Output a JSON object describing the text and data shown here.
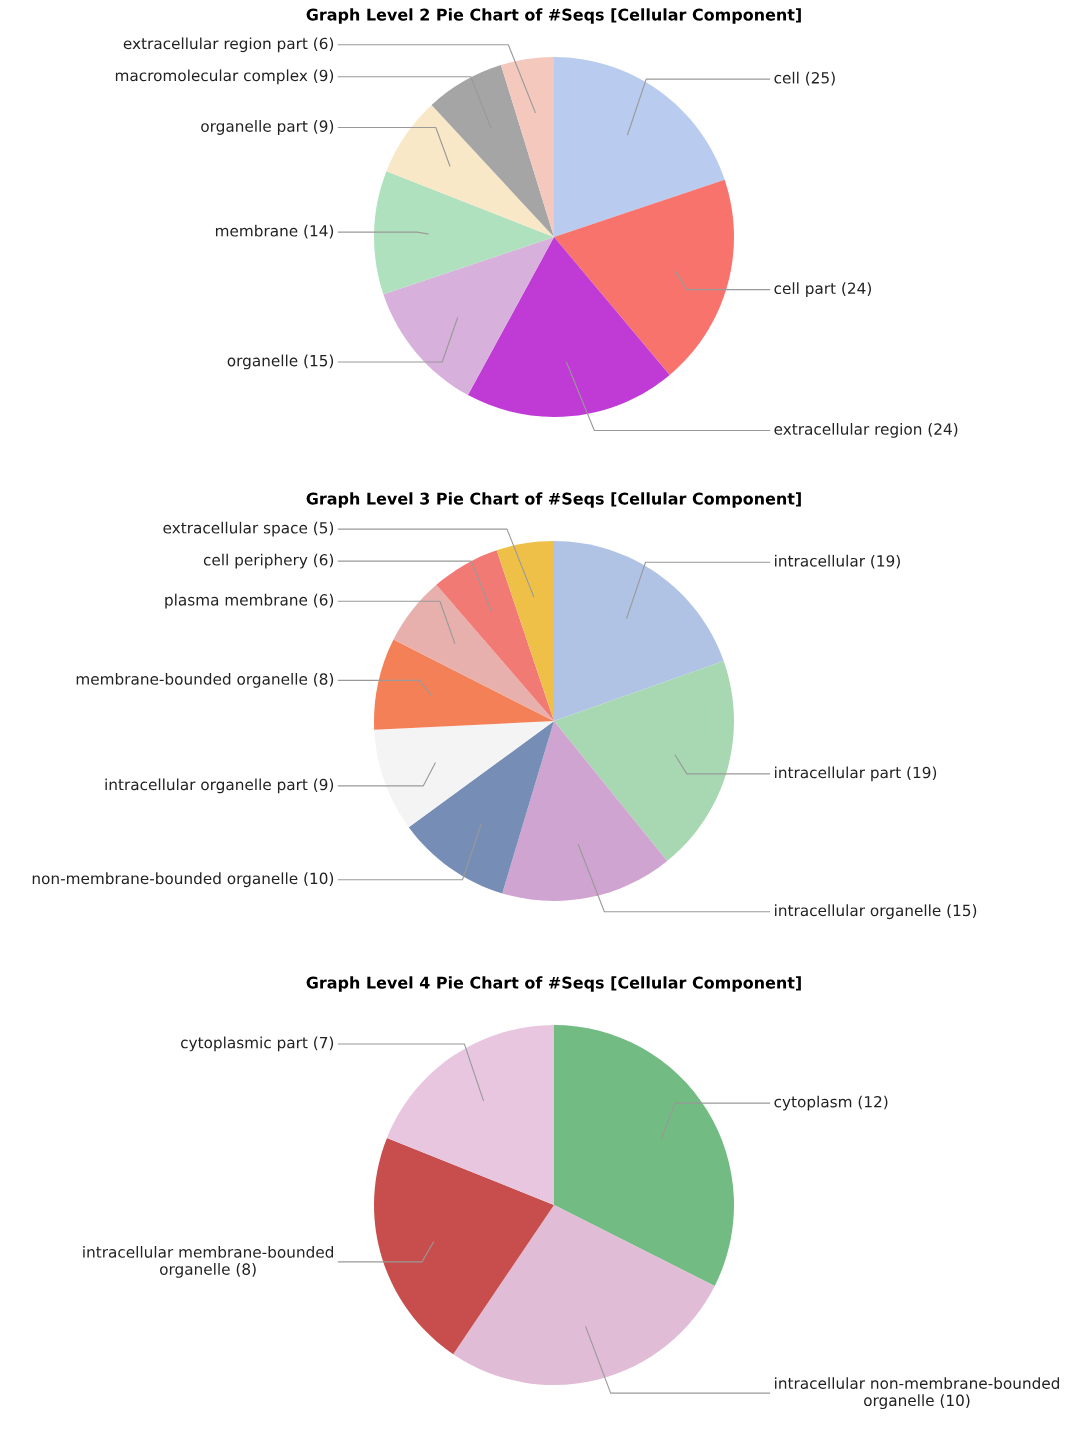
{
  "chart_data": [
    {
      "type": "pie",
      "title": "Graph Level 2 Pie Chart of #Seqs [Cellular Component]",
      "categories": [
        "cell",
        "cell part",
        "extracellular region",
        "organelle",
        "membrane",
        "organelle part",
        "macromolecular complex",
        "extracellular region part"
      ],
      "values": [
        25,
        24,
        24,
        15,
        14,
        9,
        9,
        6
      ],
      "value_labels": [
        "(25)",
        "(24)",
        "(24)",
        "(15)",
        "(14)",
        "(9)",
        "(9)",
        "(6)"
      ],
      "colors": [
        "#b9cbee",
        "#f8736c",
        "#c03bd6",
        "#d8b0dc",
        "#b0e1be",
        "#f8e8c8",
        "#a5a5a5",
        "#f4c8bd"
      ]
    },
    {
      "type": "pie",
      "title": "Graph Level 3 Pie Chart of #Seqs [Cellular Component]",
      "categories": [
        "intracellular",
        "intracellular part",
        "intracellular organelle",
        "non-membrane-bounded organelle",
        "intracellular organelle part",
        "membrane-bounded organelle",
        "plasma membrane",
        "cell periphery",
        "extracellular space"
      ],
      "values": [
        19,
        19,
        15,
        10,
        9,
        8,
        6,
        6,
        5
      ],
      "value_labels": [
        "(19)",
        "(19)",
        "(15)",
        "(10)",
        "(9)",
        "(8)",
        "(6)",
        "(6)",
        "(5)"
      ],
      "colors": [
        "#b1c3e5",
        "#a7d8b2",
        "#cfa4d0",
        "#768eb6",
        "#f4f4f4",
        "#f48058",
        "#e8b0ac",
        "#f27a74",
        "#efc048"
      ]
    },
    {
      "type": "pie",
      "title": "Graph Level 4 Pie Chart of #Seqs [Cellular Component]",
      "categories": [
        "cytoplasm",
        "intracellular non-membrane-bounded organelle",
        "intracellular membrane-bounded organelle",
        "cytoplasmic part"
      ],
      "values": [
        12,
        10,
        8,
        7
      ],
      "value_labels": [
        "(12)",
        "(10)",
        "(8)",
        "(7)"
      ],
      "colors": [
        "#72bb82",
        "#e0bcd6",
        "#c84e4d",
        "#e8c6e0"
      ]
    }
  ]
}
